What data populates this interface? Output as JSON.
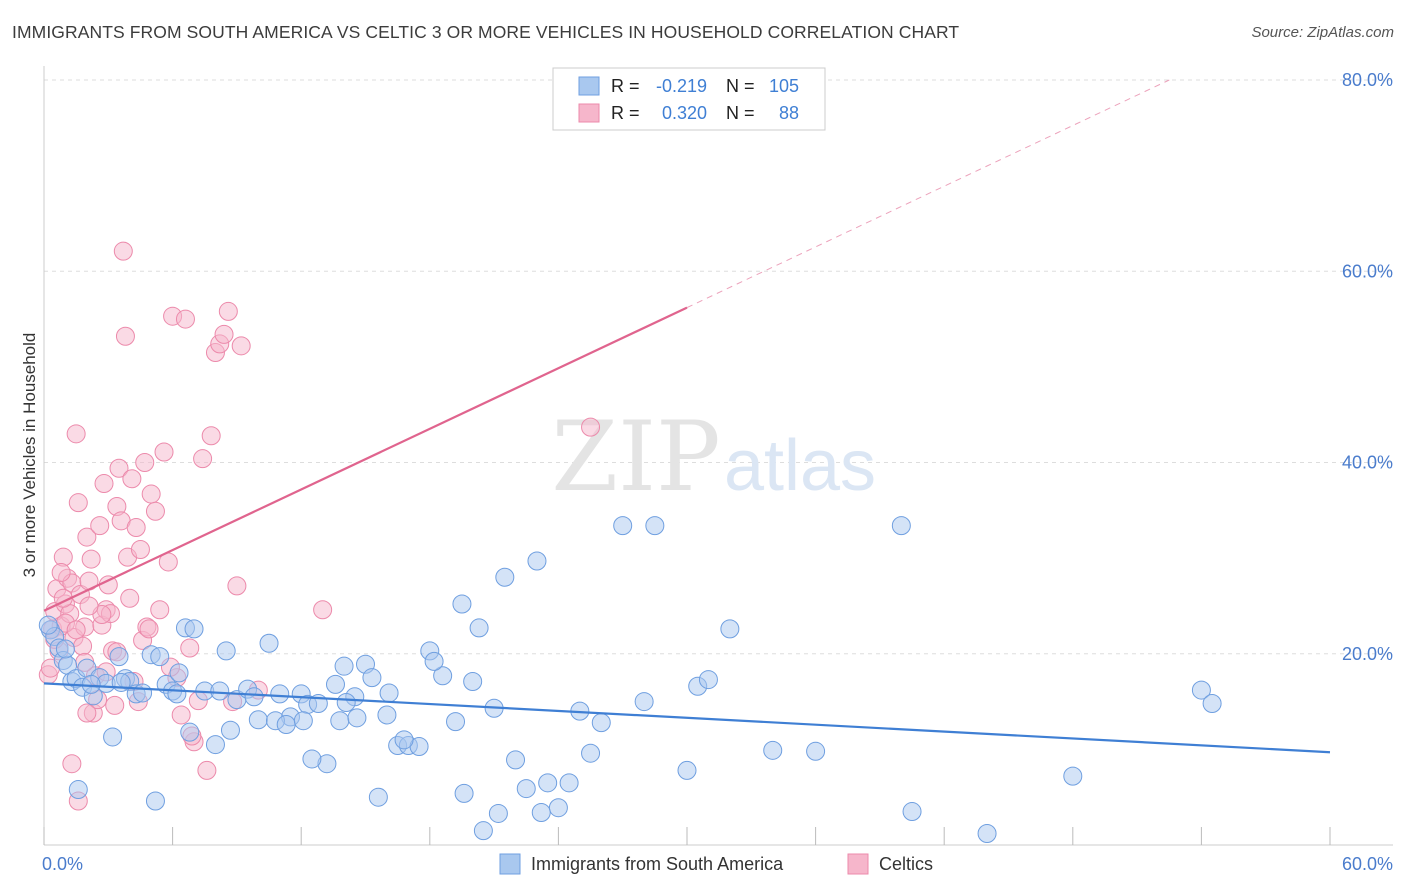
{
  "header": {
    "title": "IMMIGRANTS FROM SOUTH AMERICA VS CELTIC 3 OR MORE VEHICLES IN HOUSEHOLD CORRELATION CHART",
    "source": "Source: ZipAtlas.com"
  },
  "watermark": {
    "part1": "ZIP",
    "part2": "atlas"
  },
  "stats": {
    "blue": {
      "r_label": "R =",
      "r_value": "-0.219",
      "n_label": "N =",
      "n_value": "105"
    },
    "pink": {
      "r_label": "R =",
      "r_value": "0.320",
      "n_label": "N =",
      "n_value": "88"
    }
  },
  "legend": {
    "blue": "Immigrants from South America",
    "pink": "Celtics"
  },
  "colors": {
    "blue_fill": "#a9c8ef",
    "blue_stroke": "#6f9fe0",
    "blue_line": "#3f7fd4",
    "pink_fill": "#f6b6cb",
    "pink_stroke": "#ec8aab",
    "pink_line": "#e0648e",
    "tick_text": "#4a7ccc",
    "grid": "#dddddd"
  },
  "chart_data": {
    "type": "scatter",
    "title": "IMMIGRANTS FROM SOUTH AMERICA VS CELTIC 3 OR MORE VEHICLES IN HOUSEHOLD CORRELATION CHART",
    "xlabel": "",
    "ylabel": "3 or more Vehicles in Household",
    "xlim": [
      0,
      60
    ],
    "ylim": [
      0,
      80
    ],
    "x_ticks": [
      0,
      6,
      12,
      18,
      24,
      30,
      36,
      42,
      48,
      54,
      60
    ],
    "x_tick_labels": [
      {
        "value": 0,
        "label": "0.0%"
      },
      {
        "value": 60,
        "label": "60.0%"
      }
    ],
    "y_ticks": [
      {
        "value": 20,
        "label": "20.0%"
      },
      {
        "value": 40,
        "label": "40.0%"
      },
      {
        "value": 60,
        "label": "60.0%"
      },
      {
        "value": 80,
        "label": "80.0%"
      }
    ],
    "series": [
      {
        "name": "Immigrants from South America",
        "color": "#a9c8ef",
        "trend": {
          "x": [
            0,
            60
          ],
          "y": [
            16.9,
            9.7
          ],
          "style": "solid"
        },
        "points": [
          [
            0.3,
            22.5
          ],
          [
            0.5,
            21.8
          ],
          [
            0.7,
            20.6
          ],
          [
            0.9,
            19.3
          ],
          [
            1.1,
            18.8
          ],
          [
            1.3,
            17.1
          ],
          [
            1.5,
            17.4
          ],
          [
            1.8,
            16.5
          ],
          [
            2.0,
            18.5
          ],
          [
            2.3,
            15.6
          ],
          [
            2.6,
            17.5
          ],
          [
            2.9,
            16.9
          ],
          [
            3.2,
            11.3
          ],
          [
            3.5,
            19.7
          ],
          [
            3.8,
            17.4
          ],
          [
            4.0,
            17.1
          ],
          [
            4.3,
            15.8
          ],
          [
            4.6,
            15.9
          ],
          [
            5.0,
            19.9
          ],
          [
            5.4,
            19.7
          ],
          [
            5.7,
            16.8
          ],
          [
            6.0,
            16.1
          ],
          [
            6.2,
            15.8
          ],
          [
            6.6,
            22.7
          ],
          [
            7.0,
            22.6
          ],
          [
            7.5,
            16.1
          ],
          [
            8.0,
            10.5
          ],
          [
            8.5,
            20.3
          ],
          [
            9.0,
            15.2
          ],
          [
            9.5,
            16.3
          ],
          [
            10.0,
            13.1
          ],
          [
            10.5,
            21.1
          ],
          [
            11.0,
            15.8
          ],
          [
            11.5,
            13.4
          ],
          [
            12.0,
            15.8
          ],
          [
            12.3,
            14.7
          ],
          [
            12.8,
            14.8
          ],
          [
            13.2,
            8.5
          ],
          [
            13.6,
            16.8
          ],
          [
            14.0,
            18.7
          ],
          [
            14.5,
            15.5
          ],
          [
            15.0,
            18.9
          ],
          [
            15.3,
            17.5
          ],
          [
            16.0,
            13.6
          ],
          [
            16.5,
            10.4
          ],
          [
            17.0,
            10.4
          ],
          [
            17.5,
            10.3
          ],
          [
            18.0,
            20.3
          ],
          [
            18.6,
            17.7
          ],
          [
            19.2,
            12.9
          ],
          [
            19.5,
            25.2
          ],
          [
            20.0,
            17.1
          ],
          [
            20.3,
            22.7
          ],
          [
            21.0,
            14.3
          ],
          [
            21.5,
            28.0
          ],
          [
            22.0,
            8.9
          ],
          [
            23.0,
            29.7
          ],
          [
            23.5,
            6.5
          ],
          [
            24.0,
            3.9
          ],
          [
            25.0,
            14.0
          ],
          [
            25.5,
            9.6
          ],
          [
            26.0,
            12.8
          ],
          [
            27.0,
            33.4
          ],
          [
            28.0,
            15.0
          ],
          [
            28.5,
            33.4
          ],
          [
            30.0,
            7.8
          ],
          [
            30.5,
            16.6
          ],
          [
            31.0,
            17.3
          ],
          [
            32.0,
            22.6
          ],
          [
            34.0,
            9.9
          ],
          [
            36.0,
            9.8
          ],
          [
            40.0,
            33.4
          ],
          [
            40.5,
            3.5
          ],
          [
            44.0,
            1.2
          ],
          [
            48.0,
            7.2
          ],
          [
            54.0,
            16.2
          ],
          [
            54.5,
            14.8
          ],
          [
            1.0,
            20.5
          ],
          [
            0.2,
            23.0
          ],
          [
            2.2,
            16.8
          ],
          [
            3.6,
            17.0
          ],
          [
            6.8,
            11.8
          ],
          [
            8.7,
            12.0
          ],
          [
            10.8,
            13.0
          ],
          [
            12.5,
            9.0
          ],
          [
            13.8,
            13.0
          ],
          [
            14.6,
            13.3
          ],
          [
            15.6,
            5.0
          ],
          [
            16.8,
            11.0
          ],
          [
            19.6,
            5.4
          ],
          [
            20.5,
            1.5
          ],
          [
            21.2,
            3.3
          ],
          [
            22.5,
            5.9
          ],
          [
            23.2,
            3.4
          ],
          [
            24.5,
            6.5
          ],
          [
            1.6,
            5.8
          ],
          [
            5.2,
            4.6
          ],
          [
            6.3,
            18.0
          ],
          [
            8.2,
            16.1
          ],
          [
            9.8,
            15.5
          ],
          [
            11.3,
            12.6
          ],
          [
            12.1,
            13.0
          ],
          [
            14.1,
            14.9
          ],
          [
            16.1,
            15.9
          ],
          [
            18.2,
            19.2
          ]
        ]
      },
      {
        "name": "Celtics",
        "color": "#f6b6cb",
        "trend": {
          "x": [
            0,
            30
          ],
          "y": [
            24.5,
            56.2
          ],
          "style": "solid",
          "extension": {
            "x": [
              30,
              52.5
            ],
            "y": [
              56.2,
              80.0
            ],
            "style": "dashed"
          }
        },
        "points": [
          [
            0.2,
            17.8
          ],
          [
            0.4,
            22.6
          ],
          [
            0.5,
            24.4
          ],
          [
            0.6,
            26.8
          ],
          [
            0.7,
            20.3
          ],
          [
            0.8,
            22.9
          ],
          [
            0.9,
            30.1
          ],
          [
            1.0,
            25.2
          ],
          [
            1.1,
            27.9
          ],
          [
            1.2,
            24.2
          ],
          [
            1.3,
            27.4
          ],
          [
            1.4,
            21.7
          ],
          [
            1.5,
            43.0
          ],
          [
            1.6,
            35.8
          ],
          [
            1.7,
            26.2
          ],
          [
            1.8,
            20.8
          ],
          [
            1.9,
            22.8
          ],
          [
            2.0,
            32.2
          ],
          [
            2.1,
            27.6
          ],
          [
            2.2,
            29.9
          ],
          [
            2.3,
            13.8
          ],
          [
            2.4,
            17.7
          ],
          [
            2.5,
            15.2
          ],
          [
            2.6,
            33.4
          ],
          [
            2.7,
            23.0
          ],
          [
            2.8,
            37.8
          ],
          [
            2.9,
            24.6
          ],
          [
            3.0,
            27.2
          ],
          [
            3.1,
            24.2
          ],
          [
            3.2,
            20.3
          ],
          [
            3.3,
            14.6
          ],
          [
            3.4,
            35.4
          ],
          [
            3.5,
            39.4
          ],
          [
            3.6,
            33.9
          ],
          [
            3.7,
            62.1
          ],
          [
            3.8,
            53.2
          ],
          [
            3.9,
            30.1
          ],
          [
            4.0,
            25.8
          ],
          [
            4.1,
            38.3
          ],
          [
            4.2,
            17.1
          ],
          [
            4.3,
            33.2
          ],
          [
            4.4,
            15.0
          ],
          [
            4.5,
            30.9
          ],
          [
            4.6,
            21.4
          ],
          [
            4.7,
            40.0
          ],
          [
            4.8,
            22.8
          ],
          [
            5.0,
            36.7
          ],
          [
            5.2,
            34.9
          ],
          [
            5.4,
            24.6
          ],
          [
            5.6,
            41.1
          ],
          [
            5.8,
            29.6
          ],
          [
            6.0,
            55.3
          ],
          [
            6.2,
            17.5
          ],
          [
            6.4,
            13.6
          ],
          [
            6.6,
            55.0
          ],
          [
            6.8,
            20.6
          ],
          [
            7.0,
            10.8
          ],
          [
            7.2,
            15.1
          ],
          [
            7.4,
            40.4
          ],
          [
            7.6,
            7.8
          ],
          [
            7.8,
            42.8
          ],
          [
            8.0,
            51.5
          ],
          [
            8.2,
            52.4
          ],
          [
            8.4,
            53.4
          ],
          [
            8.6,
            55.8
          ],
          [
            8.8,
            15.0
          ],
          [
            9.0,
            27.1
          ],
          [
            9.2,
            52.2
          ],
          [
            10.0,
            16.2
          ],
          [
            13.0,
            24.6
          ],
          [
            25.5,
            43.7
          ],
          [
            0.3,
            18.5
          ],
          [
            0.9,
            25.8
          ],
          [
            1.3,
            8.5
          ],
          [
            1.6,
            4.6
          ],
          [
            2.0,
            13.8
          ],
          [
            2.7,
            24.1
          ],
          [
            3.4,
            20.2
          ],
          [
            0.5,
            21.5
          ],
          [
            1.0,
            23.2
          ],
          [
            1.5,
            22.5
          ],
          [
            2.1,
            25.0
          ],
          [
            0.8,
            28.5
          ],
          [
            1.9,
            19.1
          ],
          [
            2.9,
            18.1
          ],
          [
            4.9,
            22.6
          ],
          [
            5.9,
            18.6
          ],
          [
            6.9,
            11.4
          ]
        ]
      }
    ]
  }
}
